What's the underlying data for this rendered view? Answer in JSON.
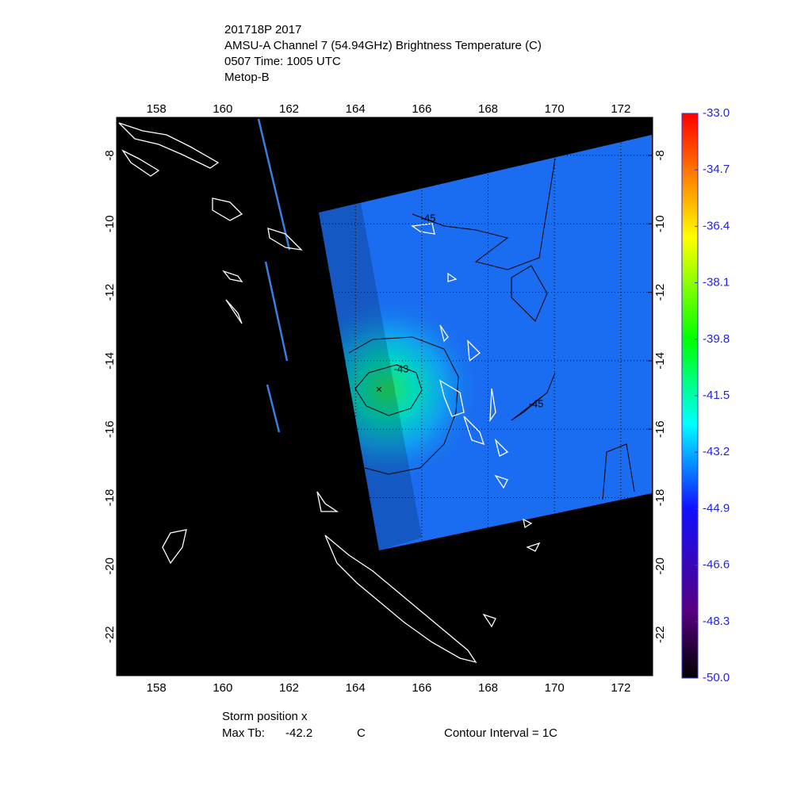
{
  "header": {
    "lines": [
      "201718P 2017",
      "AMSU-A Channel 7 (54.94GHz) Brightness Temperature (C)",
      "0507 Time: 1005 UTC",
      "Metop-B"
    ]
  },
  "map": {
    "lon_lim": [
      156.8,
      172.96
    ],
    "lat_lim": [
      -23.2,
      -6.89
    ],
    "lon_ticks": [
      158,
      160,
      162,
      164,
      166,
      168,
      170,
      172
    ],
    "lat_ticks": [
      -8,
      -10,
      -12,
      -14,
      -16,
      -18,
      -20,
      -22
    ],
    "contour_labels": [
      "-45",
      "-43",
      "-45"
    ]
  },
  "colorbar": {
    "lim": [
      -50,
      -33
    ],
    "ticks": [
      {
        "value": -33,
        "label": "-33.0"
      },
      {
        "value": -34.7,
        "label": "-34.7"
      },
      {
        "value": -36.4,
        "label": "-36.4"
      },
      {
        "value": -38.1,
        "label": "-38.1"
      },
      {
        "value": -39.8,
        "label": "-39.8"
      },
      {
        "value": -41.5,
        "label": "-41.5"
      },
      {
        "value": -43.2,
        "label": "-43.2"
      },
      {
        "value": -44.9,
        "label": "-44.9"
      },
      {
        "value": -46.6,
        "label": "-46.6"
      },
      {
        "value": -48.3,
        "label": "-48.3"
      },
      {
        "value": -50,
        "label": "-50.0"
      }
    ]
  },
  "footer": {
    "storm_position": "Storm position x",
    "max_tb_label": "Max Tb:",
    "max_tb": -42.2,
    "max_tb_unit": "C",
    "contour_interval": "Contour Interval = 1C"
  }
}
